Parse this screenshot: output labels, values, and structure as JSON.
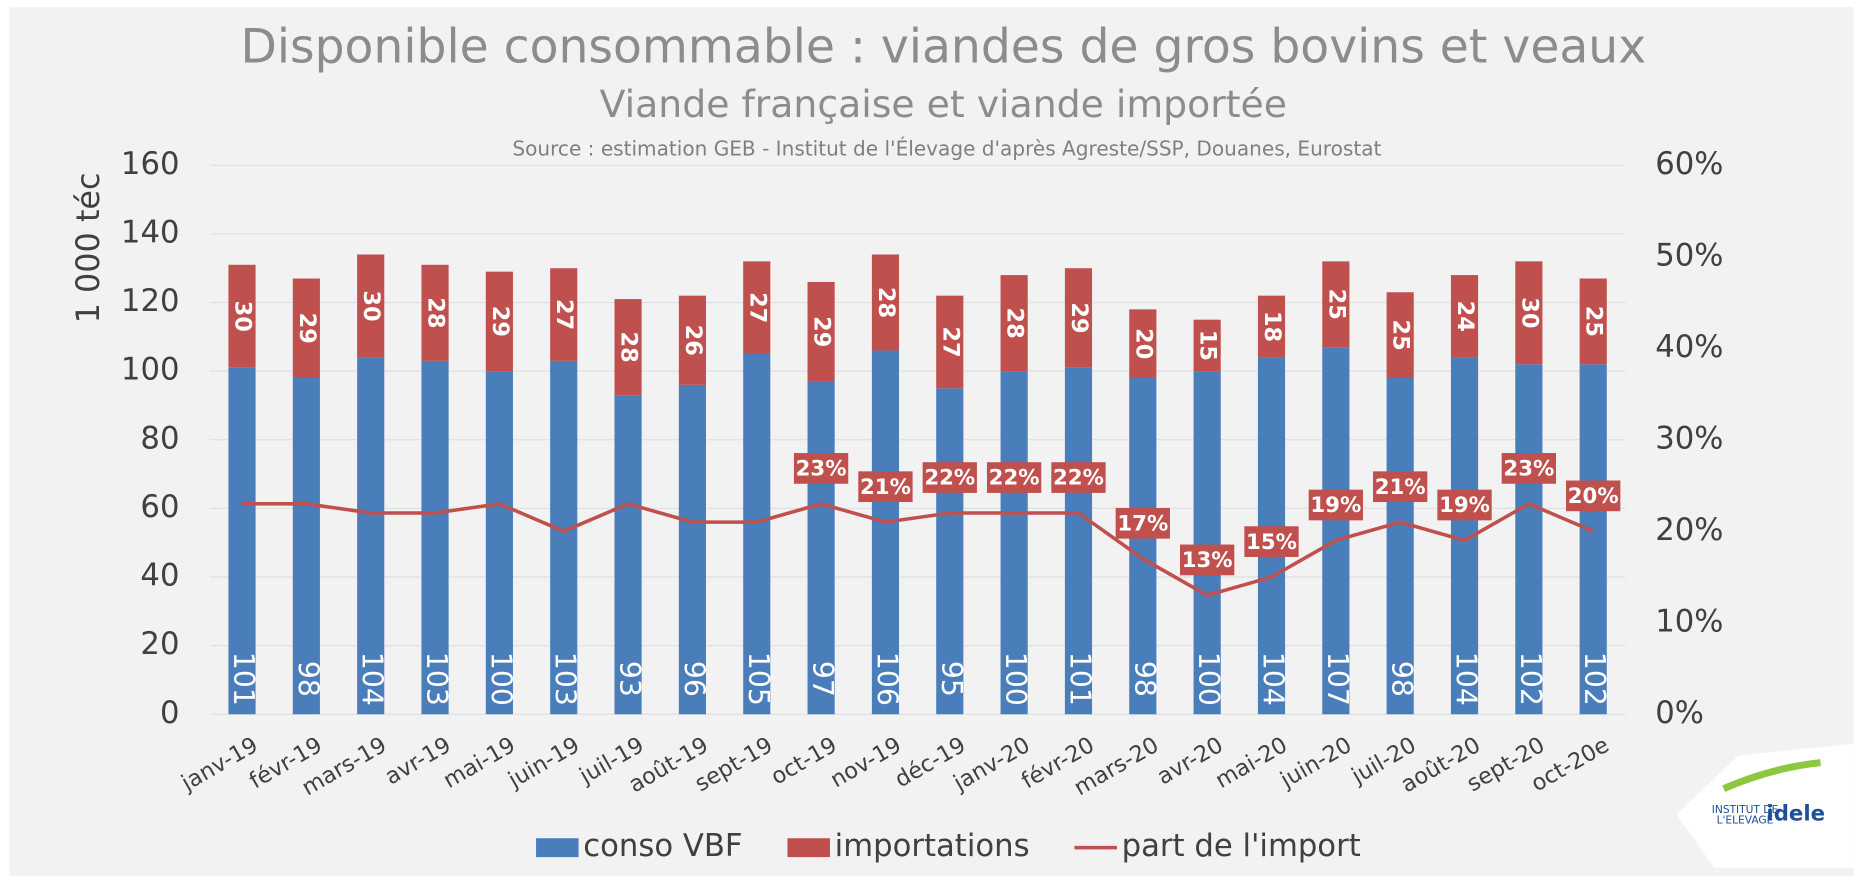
{
  "chart_data": {
    "type": "bar",
    "title": "Disponible consommable : viandes de gros bovins et veaux",
    "subtitle": "Viande française et viande importée",
    "source": "Source : estimation GEB - Institut de l'Élevage d'après Agreste/SSP, Douanes, Eurostat",
    "y_label": "1 000 téc",
    "categories": [
      "janv-19",
      "févr-19",
      "mars-19",
      "avr-19",
      "mai-19",
      "juin-19",
      "juil-19",
      "août-19",
      "sept-19",
      "oct-19",
      "nov-19",
      "déc-19",
      "janv-20",
      "févr-20",
      "mars-20",
      "avr-20",
      "mai-20",
      "juin-20",
      "juil-20",
      "août-20",
      "sept-20",
      "oct-20e"
    ],
    "series": [
      {
        "name": "conso VBF",
        "color": "#4a7ebb",
        "stack": true,
        "values": [
          101,
          98,
          104,
          103,
          100,
          103,
          93,
          96,
          105,
          97,
          106,
          95,
          100,
          101,
          98,
          100,
          104,
          107,
          98,
          104,
          102,
          102
        ]
      },
      {
        "name": "importations",
        "color": "#c0504d",
        "stack": true,
        "values": [
          30,
          29,
          30,
          28,
          29,
          27,
          28,
          26,
          27,
          29,
          28,
          27,
          28,
          29,
          20,
          15,
          18,
          25,
          25,
          24,
          30,
          25
        ]
      },
      {
        "name": "part de l'import",
        "color": "#c0504d",
        "type": "line",
        "axis": "y2",
        "values": [
          23,
          23,
          22,
          22,
          23,
          20,
          23,
          21,
          21,
          23,
          21,
          22,
          22,
          22,
          17,
          13,
          15,
          19,
          21,
          19,
          23,
          20
        ],
        "value_labels": [
          null,
          null,
          null,
          null,
          null,
          null,
          null,
          null,
          null,
          "23%",
          "21%",
          "22%",
          "22%",
          "22%",
          "17%",
          "13%",
          "15%",
          "19%",
          "21%",
          "19%",
          "23%",
          "20%"
        ]
      }
    ],
    "ylim": [
      0,
      160
    ],
    "yticks": [
      0,
      20,
      40,
      60,
      80,
      100,
      120,
      140,
      160
    ],
    "y2lim": [
      0,
      60
    ],
    "y2ticks": [
      {
        "value": 0,
        "label": "0%"
      },
      {
        "value": 10,
        "label": "10%"
      },
      {
        "value": 20,
        "label": "20%"
      },
      {
        "value": 30,
        "label": "30%"
      },
      {
        "value": 40,
        "label": "40%"
      },
      {
        "value": 50,
        "label": "50%"
      },
      {
        "value": 60,
        "label": "60%"
      }
    ],
    "grid": true,
    "legend": "bottom"
  },
  "logo": {
    "line1": "INSTITUT DE",
    "line2": "L'ELEVAGE",
    "brand": "idele"
  }
}
